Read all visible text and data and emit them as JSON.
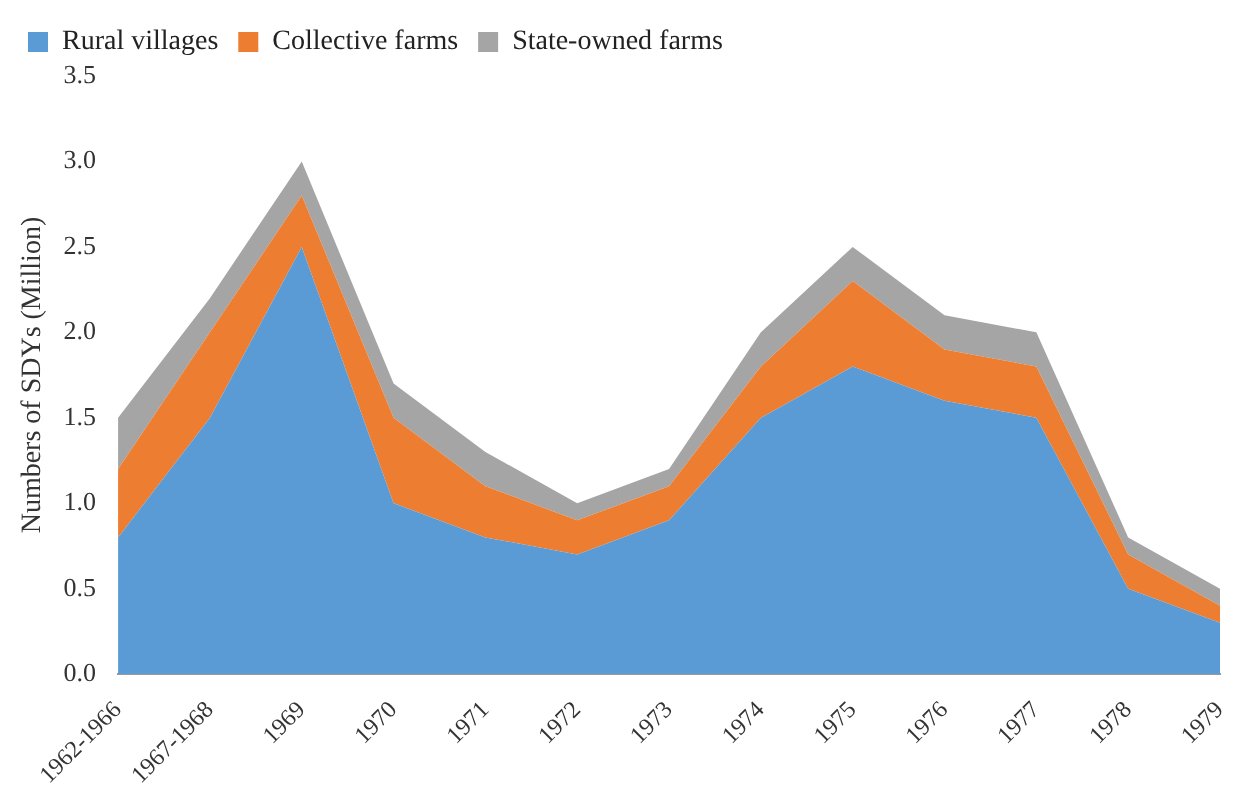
{
  "chart_data": {
    "type": "area",
    "stacked": true,
    "ylabel": "Numbers of SDYs (Million)",
    "categories": [
      "1962-1966",
      "1967-1968",
      "1969",
      "1970",
      "1971",
      "1972",
      "1973",
      "1974",
      "1975",
      "1976",
      "1977",
      "1978",
      "1979"
    ],
    "series": [
      {
        "name": "Rural villages",
        "color": "#5b9bd5",
        "values": [
          0.8,
          1.5,
          2.5,
          1.0,
          0.8,
          0.7,
          0.9,
          1.5,
          1.8,
          1.6,
          1.5,
          0.5,
          0.3
        ]
      },
      {
        "name": "Collective farms",
        "color": "#ed7d31",
        "values": [
          0.4,
          0.5,
          0.3,
          0.5,
          0.3,
          0.2,
          0.2,
          0.3,
          0.5,
          0.3,
          0.3,
          0.2,
          0.1
        ]
      },
      {
        "name": "State-owned farms",
        "color": "#a5a5a5",
        "values": [
          0.3,
          0.2,
          0.2,
          0.2,
          0.2,
          0.1,
          0.1,
          0.2,
          0.2,
          0.2,
          0.2,
          0.1,
          0.1
        ]
      }
    ],
    "ylim": [
      0,
      3.5
    ],
    "yticks": [
      {
        "value": 0,
        "label": "0.0"
      },
      {
        "value": 0.5,
        "label": "0.5"
      },
      {
        "value": 1,
        "label": "1.0"
      },
      {
        "value": 1.5,
        "label": "1.5"
      },
      {
        "value": 2,
        "label": "2.0"
      },
      {
        "value": 2.5,
        "label": "2.5"
      },
      {
        "value": 3,
        "label": "3.0"
      },
      {
        "value": 3.5,
        "label": "3.5"
      }
    ],
    "grid": false,
    "legend": "top left"
  }
}
